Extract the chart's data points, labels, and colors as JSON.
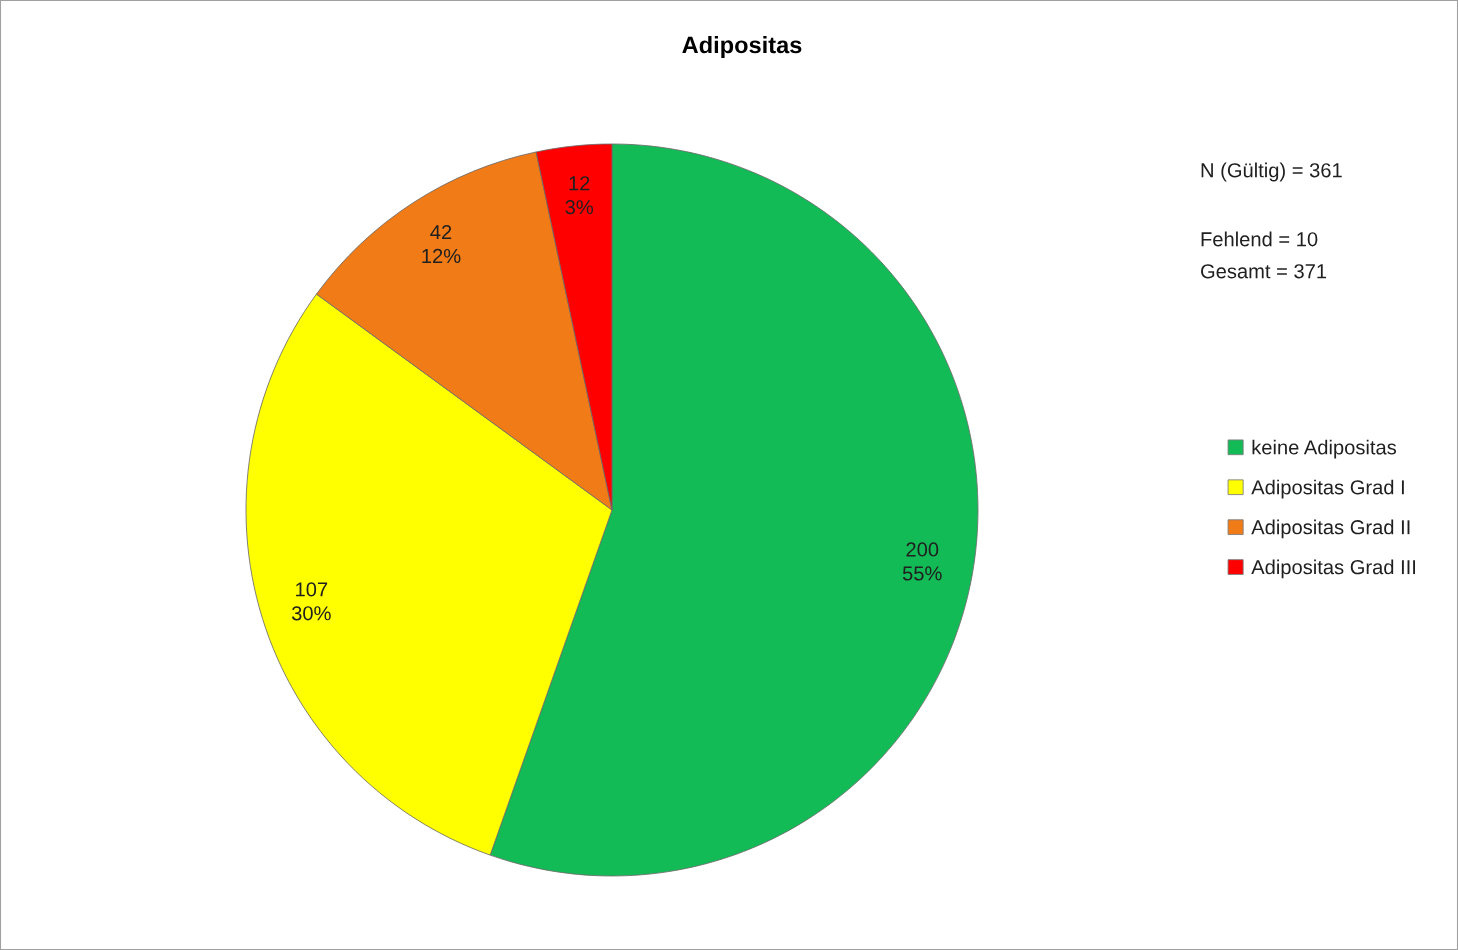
{
  "chart_data": {
    "type": "pie",
    "title": "Adipositas",
    "categories": [
      "keine Adipositas",
      "Adipositas Grad I",
      "Adipositas Grad II",
      "Adipositas Grad III"
    ],
    "values": [
      200,
      107,
      42,
      12
    ],
    "colors": [
      "#12bb55",
      "#ffff00",
      "#f07b17",
      "#ff0000"
    ],
    "value_labels": [
      "200\n55%",
      "107\n30%",
      "42\n12%",
      "12\n3%"
    ],
    "annotations": [
      "N (Gültig) = 361",
      "Fehlend = 10",
      "Gesamt = 371"
    ],
    "legend": "right"
  }
}
